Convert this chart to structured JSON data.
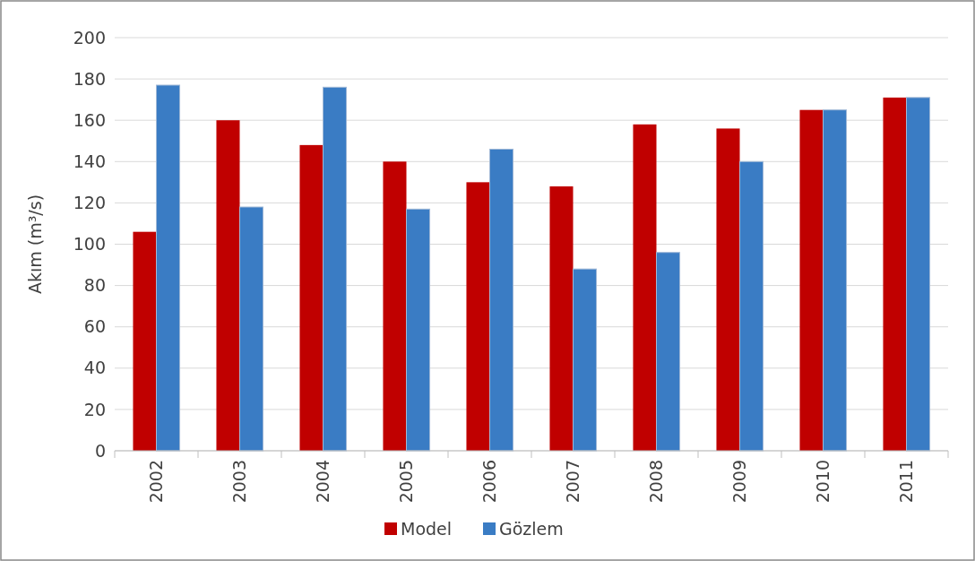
{
  "chart_data": {
    "type": "bar",
    "ylabel": "Akım (m³/s)",
    "categories": [
      "2002",
      "2003",
      "2004",
      "2005",
      "2006",
      "2007",
      "2008",
      "2009",
      "2010",
      "2011"
    ],
    "series": [
      {
        "name": "Model",
        "color": "#c00000",
        "values": [
          106,
          160,
          148,
          140,
          130,
          128,
          158,
          156,
          165,
          171
        ]
      },
      {
        "name": "Gözlem",
        "color": "#3a7cc4",
        "values": [
          177,
          118,
          176,
          117,
          146,
          88,
          96,
          140,
          165,
          171
        ]
      }
    ],
    "ylim": [
      0,
      200
    ],
    "yticks": [
      0,
      20,
      40,
      60,
      80,
      100,
      120,
      140,
      160,
      180,
      200
    ],
    "grid": "y",
    "legend": "bottom"
  }
}
